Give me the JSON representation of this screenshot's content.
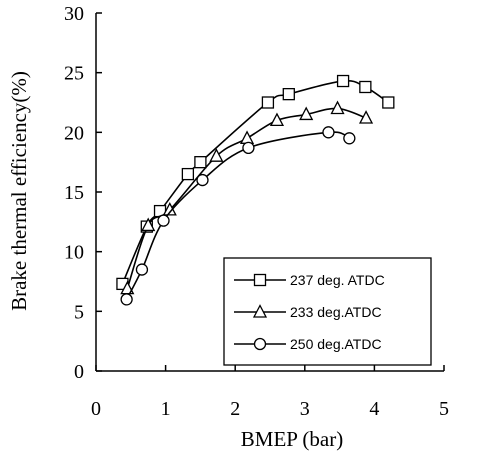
{
  "chart_data": {
    "type": "line",
    "xlabel": "BMEP (bar)",
    "ylabel": "Brake thermal efficiency(%)",
    "xlim": [
      0,
      5
    ],
    "ylim": [
      0,
      30
    ],
    "xticks": [
      "0",
      "1",
      "2",
      "3",
      "4",
      "5"
    ],
    "yticks": [
      "0",
      "5",
      "10",
      "15",
      "20",
      "25",
      "30"
    ],
    "grid": false,
    "legend_position": "bottom-right",
    "series": [
      {
        "name": "237 deg. ATDC",
        "marker": "square",
        "x": [
          0.38,
          0.73,
          0.92,
          1.32,
          1.5,
          2.47,
          2.77,
          3.55,
          3.87,
          4.2
        ],
        "y": [
          7.3,
          12.1,
          13.4,
          16.5,
          17.5,
          22.5,
          23.2,
          24.3,
          23.8,
          22.5
        ]
      },
      {
        "name": "233 deg.ATDC",
        "marker": "triangle",
        "x": [
          0.45,
          0.75,
          1.06,
          1.73,
          2.17,
          2.6,
          3.02,
          3.47,
          3.88
        ],
        "y": [
          6.9,
          12.2,
          13.5,
          18.0,
          19.5,
          21.0,
          21.5,
          22.0,
          21.2
        ]
      },
      {
        "name": "250 deg.ATDC",
        "marker": "circle",
        "x": [
          0.44,
          0.66,
          0.97,
          1.53,
          2.19,
          3.34,
          3.64
        ],
        "y": [
          6.0,
          8.5,
          12.6,
          16.0,
          18.7,
          20.0,
          19.5
        ]
      }
    ]
  }
}
